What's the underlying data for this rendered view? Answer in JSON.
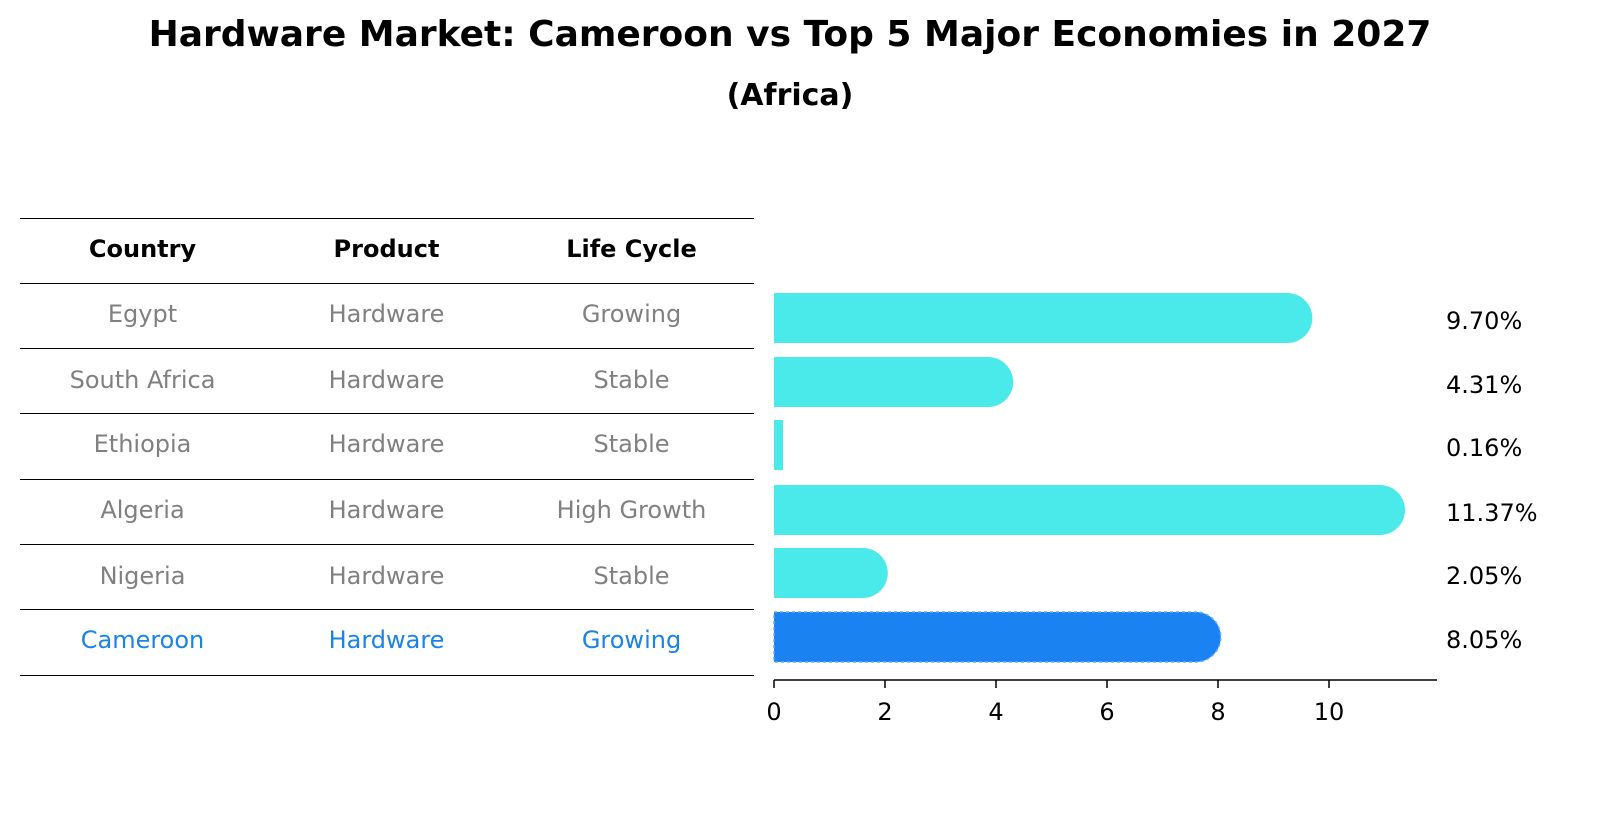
{
  "title": "Hardware Market: Cameroon vs Top 5 Major Economies in 2027",
  "subtitle": "(Africa)",
  "table": {
    "headers": [
      "Country",
      "Product",
      "Life Cycle"
    ],
    "rows": [
      {
        "country": "Egypt",
        "product": "Hardware",
        "life_cycle": "Growing",
        "highlight": false
      },
      {
        "country": "South Africa",
        "product": "Hardware",
        "life_cycle": "Stable",
        "highlight": false
      },
      {
        "country": "Ethiopia",
        "product": "Hardware",
        "life_cycle": "Stable",
        "highlight": false
      },
      {
        "country": "Algeria",
        "product": "Hardware",
        "life_cycle": "High Growth",
        "highlight": false
      },
      {
        "country": "Nigeria",
        "product": "Hardware",
        "life_cycle": "Stable",
        "highlight": false
      },
      {
        "country": "Cameroon",
        "product": "Hardware",
        "life_cycle": "Growing",
        "highlight": true
      }
    ]
  },
  "chart_data": {
    "type": "bar",
    "orientation": "horizontal",
    "categories": [
      "Egypt",
      "South Africa",
      "Ethiopia",
      "Algeria",
      "Nigeria",
      "Cameroon"
    ],
    "values": [
      9.7,
      4.31,
      0.16,
      11.37,
      2.05,
      8.05
    ],
    "value_labels": [
      "9.70%",
      "4.31%",
      "0.16%",
      "11.37%",
      "2.05%",
      "8.05%"
    ],
    "xticks": [
      0,
      2,
      4,
      6,
      8,
      10
    ],
    "xlim": [
      0,
      11.9
    ],
    "highlight_category": "Cameroon",
    "colors": {
      "default": "#4aeaea",
      "highlight": "#1b82f2"
    },
    "grid": false
  },
  "colors": {
    "text_gray": "#808080",
    "text_blue": "#1b82e6"
  }
}
